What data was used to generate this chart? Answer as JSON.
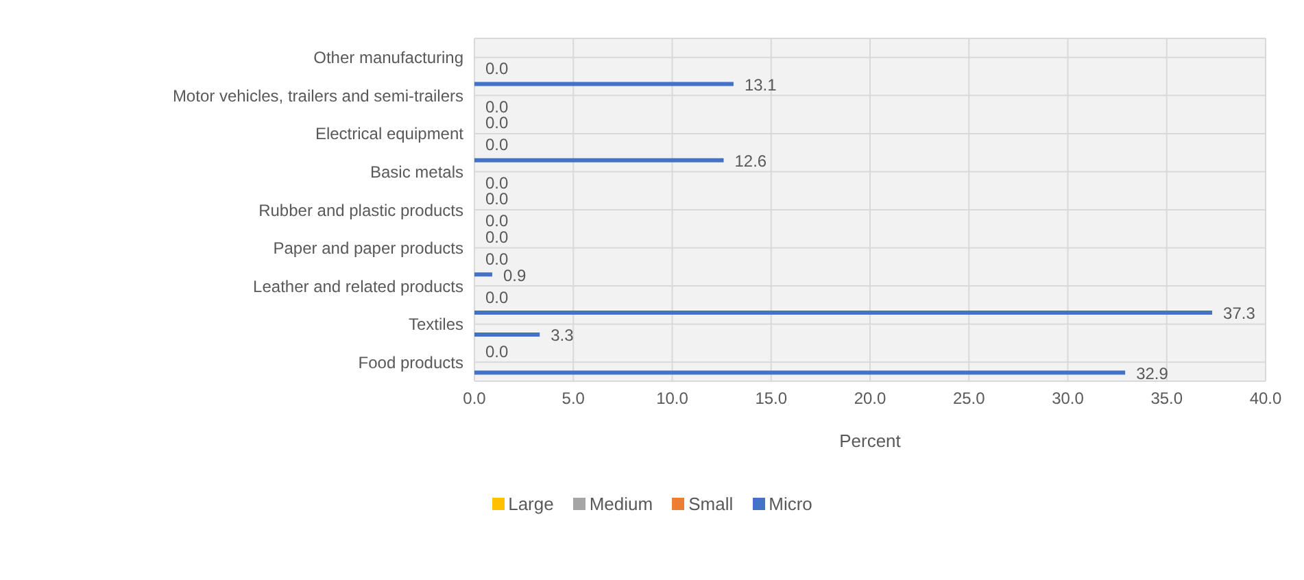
{
  "chart_data": {
    "type": "bar",
    "orientation": "horizontal",
    "xlabel": "Percent",
    "categories": [
      "Other manufacturing",
      "Motor vehicles, trailers and semi-trailers",
      "Electrical equipment",
      "Basic metals",
      "Rubber and plastic products",
      "Paper and paper products",
      "Leather and related products",
      "Textiles",
      "Food products"
    ],
    "series": [
      {
        "name": "Large",
        "color": "#ffc000",
        "values": [
          null,
          null,
          null,
          null,
          null,
          null,
          null,
          null,
          null
        ]
      },
      {
        "name": "Medium",
        "color": "#a5a5a5",
        "values": [
          null,
          null,
          null,
          null,
          null,
          null,
          null,
          null,
          null
        ]
      },
      {
        "name": "Small",
        "color": "#ed7d31",
        "values": [
          null,
          null,
          null,
          null,
          null,
          null,
          null,
          null,
          null
        ]
      },
      {
        "name": "Micro",
        "color": "#4472c4",
        "values": [
          null,
          13.1,
          0.0,
          12.6,
          0.0,
          0.0,
          0.9,
          37.3,
          0.0
        ],
        "value_labels": [
          null,
          "13.1",
          "0.0",
          "12.6",
          "0.0",
          "0.0",
          "0.9",
          "37.3",
          "0.0"
        ]
      },
      {
        "color": "#4472c4",
        "values": [
          0.0,
          0.0,
          0.0,
          0.0,
          0.0,
          0.0,
          0.0,
          3.3,
          32.9
        ],
        "value_labels": [
          "0.0",
          "0.0",
          "0.0",
          "0.0",
          "0.0",
          "0.0",
          "0.0",
          "3.3",
          "32.9"
        ]
      }
    ],
    "xlim": [
      0,
      40
    ],
    "xticks": [
      {
        "value": 0,
        "label": "0.0"
      },
      {
        "value": 5,
        "label": "5.0"
      },
      {
        "value": 10,
        "label": "10.0"
      },
      {
        "value": 15,
        "label": "15.0"
      },
      {
        "value": 20,
        "label": "20.0"
      },
      {
        "value": 25,
        "label": "25.0"
      },
      {
        "value": 30,
        "label": "30.0"
      },
      {
        "value": 35,
        "label": "35.0"
      },
      {
        "value": 40,
        "label": "40.0"
      }
    ],
    "grid": true,
    "legend": "bottom"
  }
}
